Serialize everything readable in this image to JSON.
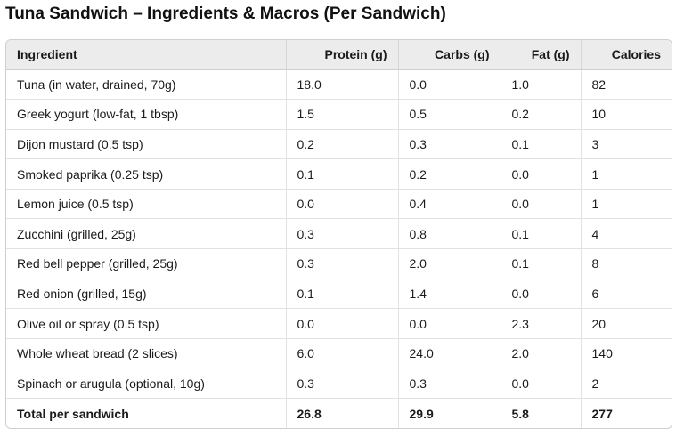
{
  "title": "Tuna Sandwich – Ingredients & Macros (Per Sandwich)",
  "headers": [
    "Ingredient",
    "Protein (g)",
    "Carbs (g)",
    "Fat (g)",
    "Calories"
  ],
  "rows": [
    [
      "Tuna (in water, drained, 70g)",
      "18.0",
      "0.0",
      "1.0",
      "82"
    ],
    [
      "Greek yogurt (low-fat, 1 tbsp)",
      "1.5",
      "0.5",
      "0.2",
      "10"
    ],
    [
      "Dijon mustard (0.5 tsp)",
      "0.2",
      "0.3",
      "0.1",
      "3"
    ],
    [
      "Smoked paprika (0.25 tsp)",
      "0.1",
      "0.2",
      "0.0",
      "1"
    ],
    [
      "Lemon juice (0.5 tsp)",
      "0.0",
      "0.4",
      "0.0",
      "1"
    ],
    [
      "Zucchini (grilled, 25g)",
      "0.3",
      "0.8",
      "0.1",
      "4"
    ],
    [
      "Red bell pepper (grilled, 25g)",
      "0.3",
      "2.0",
      "0.1",
      "8"
    ],
    [
      "Red onion (grilled, 15g)",
      "0.1",
      "1.4",
      "0.0",
      "6"
    ],
    [
      "Olive oil or spray (0.5 tsp)",
      "0.0",
      "0.0",
      "2.3",
      "20"
    ],
    [
      "Whole wheat bread (2 slices)",
      "6.0",
      "24.0",
      "2.0",
      "140"
    ],
    [
      "Spinach or arugula (optional, 10g)",
      "0.3",
      "0.3",
      "0.0",
      "2"
    ]
  ],
  "total": [
    "Total per sandwich",
    "26.8",
    "29.9",
    "5.8",
    "277"
  ]
}
